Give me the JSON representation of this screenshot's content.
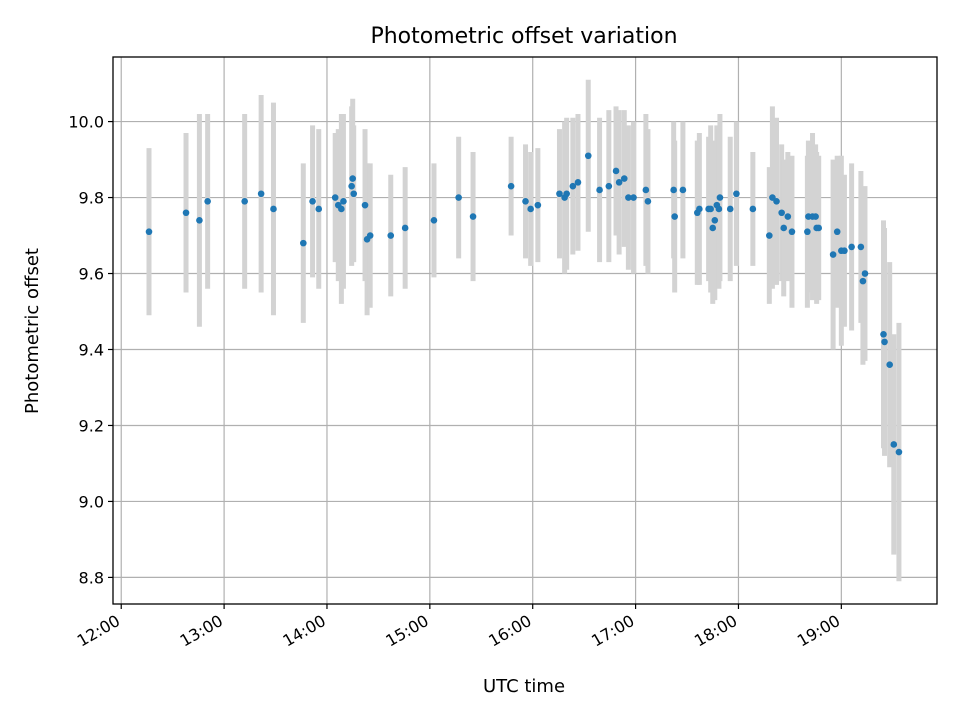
{
  "chart_data": {
    "type": "scatter",
    "title": "Photometric offset variation",
    "xlabel": "UTC time",
    "ylabel": "Photometric offset",
    "xlim": [
      11.92,
      19.93
    ],
    "ylim": [
      8.73,
      10.17
    ],
    "grid": true,
    "colors": {
      "point": "#1f77b4",
      "errorbar": "#d3d3d3",
      "grid": "#b0b0b0"
    },
    "xticks": [
      12,
      13,
      14,
      15,
      16,
      17,
      18,
      19
    ],
    "xtick_labels": [
      "12:00",
      "13:00",
      "14:00",
      "15:00",
      "16:00",
      "17:00",
      "18:00",
      "19:00"
    ],
    "yticks": [
      8.8,
      9.0,
      9.2,
      9.4,
      9.6,
      9.8,
      10.0
    ],
    "ytick_labels": [
      "8.8",
      "9.0",
      "9.2",
      "9.4",
      "9.6",
      "9.8",
      "10.0"
    ],
    "series": [
      {
        "name": "offset",
        "points": [
          [
            12.27,
            9.71,
            0.22
          ],
          [
            12.63,
            9.76,
            0.21
          ],
          [
            12.76,
            9.74,
            0.28
          ],
          [
            12.84,
            9.79,
            0.23
          ],
          [
            13.2,
            9.79,
            0.23
          ],
          [
            13.36,
            9.81,
            0.26
          ],
          [
            13.48,
            9.77,
            0.28
          ],
          [
            13.77,
            9.68,
            0.21
          ],
          [
            13.86,
            9.79,
            0.2
          ],
          [
            13.92,
            9.77,
            0.21
          ],
          [
            14.08,
            9.8,
            0.17
          ],
          [
            14.11,
            9.78,
            0.2
          ],
          [
            14.14,
            9.77,
            0.25
          ],
          [
            14.16,
            9.79,
            0.23
          ],
          [
            14.24,
            9.83,
            0.21
          ],
          [
            14.25,
            9.85,
            0.21
          ],
          [
            14.26,
            9.81,
            0.18
          ],
          [
            14.37,
            9.78,
            0.2
          ],
          [
            14.39,
            9.69,
            0.2
          ],
          [
            14.42,
            9.7,
            0.19
          ],
          [
            14.62,
            9.7,
            0.16
          ],
          [
            14.76,
            9.72,
            0.16
          ],
          [
            15.04,
            9.74,
            0.15
          ],
          [
            15.28,
            9.8,
            0.16
          ],
          [
            15.42,
            9.75,
            0.17
          ],
          [
            15.79,
            9.83,
            0.13
          ],
          [
            15.93,
            9.79,
            0.15
          ],
          [
            15.98,
            9.77,
            0.15
          ],
          [
            16.05,
            9.78,
            0.15
          ],
          [
            16.26,
            9.81,
            0.17
          ],
          [
            16.31,
            9.8,
            0.2
          ],
          [
            16.33,
            9.81,
            0.2
          ],
          [
            16.39,
            9.83,
            0.18
          ],
          [
            16.44,
            9.84,
            0.18
          ],
          [
            16.54,
            9.91,
            0.2
          ],
          [
            16.65,
            9.82,
            0.19
          ],
          [
            16.74,
            9.83,
            0.2
          ],
          [
            16.81,
            9.87,
            0.17
          ],
          [
            16.84,
            9.84,
            0.19
          ],
          [
            16.89,
            9.85,
            0.18
          ],
          [
            16.93,
            9.8,
            0.19
          ],
          [
            16.98,
            9.8,
            0.2
          ],
          [
            17.1,
            9.82,
            0.2
          ],
          [
            17.12,
            9.79,
            0.19
          ],
          [
            17.37,
            9.82,
            0.18
          ],
          [
            17.38,
            9.75,
            0.2
          ],
          [
            17.46,
            9.82,
            0.18
          ],
          [
            17.6,
            9.76,
            0.19
          ],
          [
            17.62,
            9.77,
            0.2
          ],
          [
            17.71,
            9.77,
            0.19
          ],
          [
            17.73,
            9.77,
            0.22
          ],
          [
            17.75,
            9.72,
            0.2
          ],
          [
            17.77,
            9.74,
            0.21
          ],
          [
            17.79,
            9.78,
            0.21
          ],
          [
            17.81,
            9.77,
            0.21
          ],
          [
            17.82,
            9.8,
            0.22
          ],
          [
            17.92,
            9.77,
            0.19
          ],
          [
            17.98,
            9.81,
            0.19
          ],
          [
            18.14,
            9.77,
            0.15
          ],
          [
            18.3,
            9.7,
            0.18
          ],
          [
            18.33,
            9.8,
            0.24
          ],
          [
            18.37,
            9.79,
            0.22
          ],
          [
            18.42,
            9.76,
            0.18
          ],
          [
            18.44,
            9.72,
            0.18
          ],
          [
            18.48,
            9.75,
            0.17
          ],
          [
            18.52,
            9.71,
            0.2
          ],
          [
            18.67,
            9.71,
            0.2
          ],
          [
            18.68,
            9.75,
            0.2
          ],
          [
            18.72,
            9.75,
            0.22
          ],
          [
            18.75,
            9.75,
            0.19
          ],
          [
            18.76,
            9.72,
            0.2
          ],
          [
            18.78,
            9.72,
            0.19
          ],
          [
            18.92,
            9.65,
            0.25
          ],
          [
            18.96,
            9.71,
            0.2
          ],
          [
            19.0,
            9.66,
            0.25
          ],
          [
            19.03,
            9.66,
            0.2
          ],
          [
            19.1,
            9.67,
            0.22
          ],
          [
            19.19,
            9.67,
            0.2
          ],
          [
            19.21,
            9.58,
            0.22
          ],
          [
            19.23,
            9.6,
            0.23
          ],
          [
            19.41,
            9.44,
            0.3
          ],
          [
            19.42,
            9.42,
            0.3
          ],
          [
            19.47,
            9.36,
            0.27
          ],
          [
            19.51,
            9.15,
            0.29
          ],
          [
            19.56,
            9.13,
            0.34
          ]
        ]
      }
    ]
  }
}
